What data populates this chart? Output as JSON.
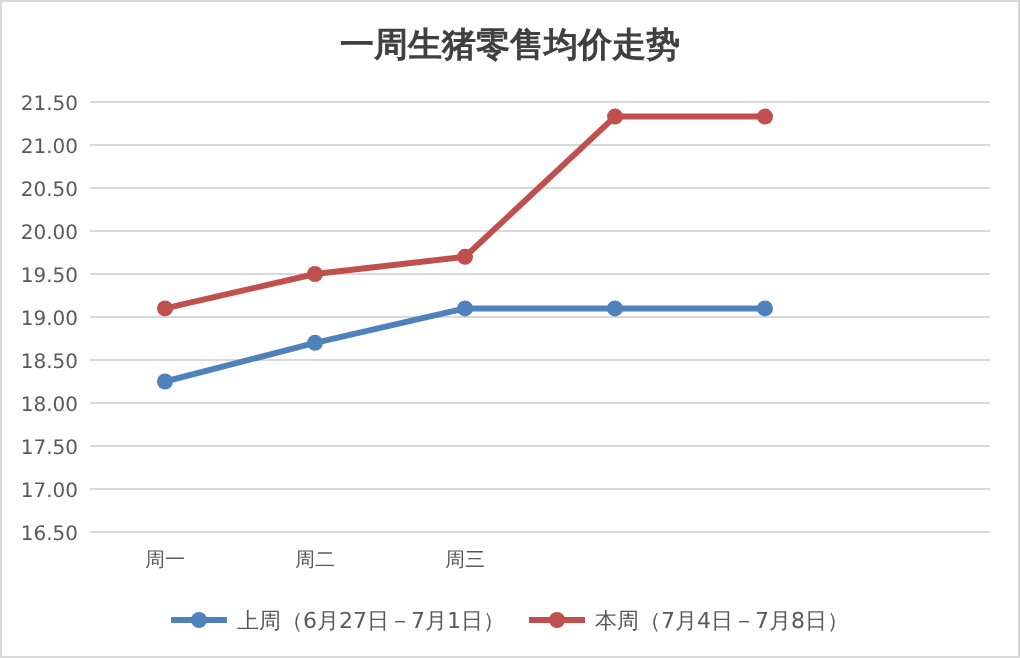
{
  "chart_data": {
    "type": "line",
    "title": "一周生猪零售均价走势",
    "categories": [
      "周一",
      "周二",
      "周三",
      null,
      null,
      null
    ],
    "series": [
      {
        "name": "上周（6月27日－7月1日）",
        "color": "#4f81bd",
        "values": [
          18.25,
          18.7,
          19.1,
          19.1,
          19.1,
          null
        ]
      },
      {
        "name": "本周（7月4日－7月8日）",
        "color": "#c0504d",
        "values": [
          19.1,
          19.5,
          19.7,
          21.33,
          21.33,
          null
        ]
      }
    ],
    "ylim": [
      16.5,
      21.5
    ],
    "yticks": [
      {
        "value": 16.5,
        "label": "16.50"
      },
      {
        "value": 17,
        "label": "17.00"
      },
      {
        "value": 17.5,
        "label": "17.50"
      },
      {
        "value": 18,
        "label": "18.00"
      },
      {
        "value": 18.5,
        "label": "18.50"
      },
      {
        "value": 19,
        "label": "19.00"
      },
      {
        "value": 19.5,
        "label": "19.50"
      },
      {
        "value": 20,
        "label": "20.00"
      },
      {
        "value": 20.5,
        "label": "20.50"
      },
      {
        "value": 21,
        "label": "21.00"
      },
      {
        "value": 21.5,
        "label": "21.50"
      }
    ],
    "grid": "y",
    "legend": "bottom",
    "marker": "circle",
    "line_style": "solid"
  }
}
